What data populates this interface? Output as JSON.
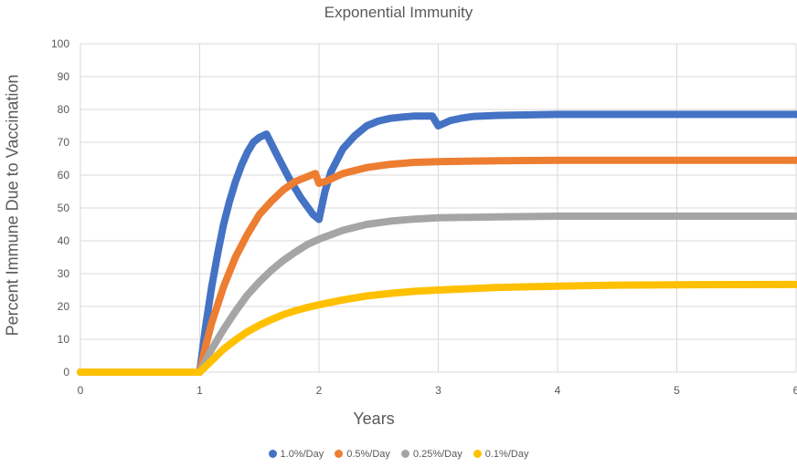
{
  "chart_data": {
    "type": "line",
    "title": "Exponential Immunity",
    "xlabel": "Years",
    "ylabel": "Percent Immune Due to Vaccination",
    "xlim": [
      0,
      6
    ],
    "ylim": [
      0,
      100
    ],
    "x_ticks": [
      0,
      1,
      2,
      3,
      4,
      5,
      6
    ],
    "y_ticks": [
      0,
      10,
      20,
      30,
      40,
      50,
      60,
      70,
      80,
      90,
      100
    ],
    "grid": true,
    "legend_position": "bottom",
    "series": [
      {
        "name": "1.0%/Day",
        "color": "#4472C4",
        "points": [
          [
            0,
            0
          ],
          [
            1,
            0
          ],
          [
            1.05,
            14
          ],
          [
            1.1,
            26
          ],
          [
            1.15,
            36
          ],
          [
            1.2,
            45
          ],
          [
            1.25,
            52
          ],
          [
            1.3,
            58
          ],
          [
            1.35,
            63
          ],
          [
            1.4,
            67
          ],
          [
            1.45,
            70
          ],
          [
            1.5,
            71.5
          ],
          [
            1.56,
            72.5
          ],
          [
            1.65,
            66
          ],
          [
            1.75,
            59
          ],
          [
            1.85,
            53
          ],
          [
            1.95,
            48
          ],
          [
            2,
            46.5
          ],
          [
            2.05,
            55
          ],
          [
            2.1,
            61
          ],
          [
            2.2,
            68
          ],
          [
            2.3,
            72
          ],
          [
            2.4,
            75
          ],
          [
            2.5,
            76.5
          ],
          [
            2.6,
            77.3
          ],
          [
            2.7,
            77.7
          ],
          [
            2.8,
            78
          ],
          [
            2.9,
            78
          ],
          [
            2.95,
            78
          ],
          [
            3,
            75
          ],
          [
            3.05,
            75.8
          ],
          [
            3.1,
            76.6
          ],
          [
            3.2,
            77.4
          ],
          [
            3.3,
            77.9
          ],
          [
            3.5,
            78.2
          ],
          [
            4,
            78.5
          ],
          [
            5,
            78.5
          ],
          [
            6,
            78.5
          ]
        ]
      },
      {
        "name": "0.5%/Day",
        "color": "#ED7D31",
        "points": [
          [
            0,
            0
          ],
          [
            1,
            0
          ],
          [
            1.05,
            8
          ],
          [
            1.1,
            15
          ],
          [
            1.2,
            26
          ],
          [
            1.3,
            35
          ],
          [
            1.4,
            42
          ],
          [
            1.5,
            48
          ],
          [
            1.6,
            52
          ],
          [
            1.7,
            55.5
          ],
          [
            1.8,
            58
          ],
          [
            1.9,
            59.5
          ],
          [
            1.97,
            60.5
          ],
          [
            2,
            57.5
          ],
          [
            2.05,
            58
          ],
          [
            2.2,
            60.5
          ],
          [
            2.4,
            62.3
          ],
          [
            2.6,
            63.3
          ],
          [
            2.8,
            63.9
          ],
          [
            3,
            64.1
          ],
          [
            3.5,
            64.4
          ],
          [
            4,
            64.5
          ],
          [
            5,
            64.5
          ],
          [
            6,
            64.5
          ]
        ]
      },
      {
        "name": "0.25%/Day",
        "color": "#A5A5A5",
        "points": [
          [
            0,
            0
          ],
          [
            1,
            0
          ],
          [
            1.1,
            7
          ],
          [
            1.2,
            13
          ],
          [
            1.3,
            18.5
          ],
          [
            1.4,
            23.5
          ],
          [
            1.5,
            27.5
          ],
          [
            1.6,
            31
          ],
          [
            1.7,
            34
          ],
          [
            1.8,
            36.5
          ],
          [
            1.9,
            38.8
          ],
          [
            2,
            40.5
          ],
          [
            2.2,
            43.2
          ],
          [
            2.4,
            45
          ],
          [
            2.6,
            46
          ],
          [
            2.8,
            46.6
          ],
          [
            3,
            47
          ],
          [
            3.5,
            47.3
          ],
          [
            4,
            47.5
          ],
          [
            5,
            47.5
          ],
          [
            6,
            47.5
          ]
        ]
      },
      {
        "name": "0.1%/Day",
        "color": "#FFC000",
        "points": [
          [
            0,
            0
          ],
          [
            1,
            0
          ],
          [
            1.1,
            3.5
          ],
          [
            1.2,
            7
          ],
          [
            1.3,
            9.8
          ],
          [
            1.4,
            12.3
          ],
          [
            1.5,
            14.3
          ],
          [
            1.6,
            16
          ],
          [
            1.7,
            17.5
          ],
          [
            1.8,
            18.7
          ],
          [
            1.9,
            19.7
          ],
          [
            2,
            20.5
          ],
          [
            2.2,
            22
          ],
          [
            2.4,
            23.2
          ],
          [
            2.6,
            24
          ],
          [
            2.8,
            24.6
          ],
          [
            3,
            25
          ],
          [
            3.5,
            25.8
          ],
          [
            4,
            26.2
          ],
          [
            4.5,
            26.5
          ],
          [
            5,
            26.6
          ],
          [
            6,
            26.7
          ]
        ]
      }
    ]
  }
}
